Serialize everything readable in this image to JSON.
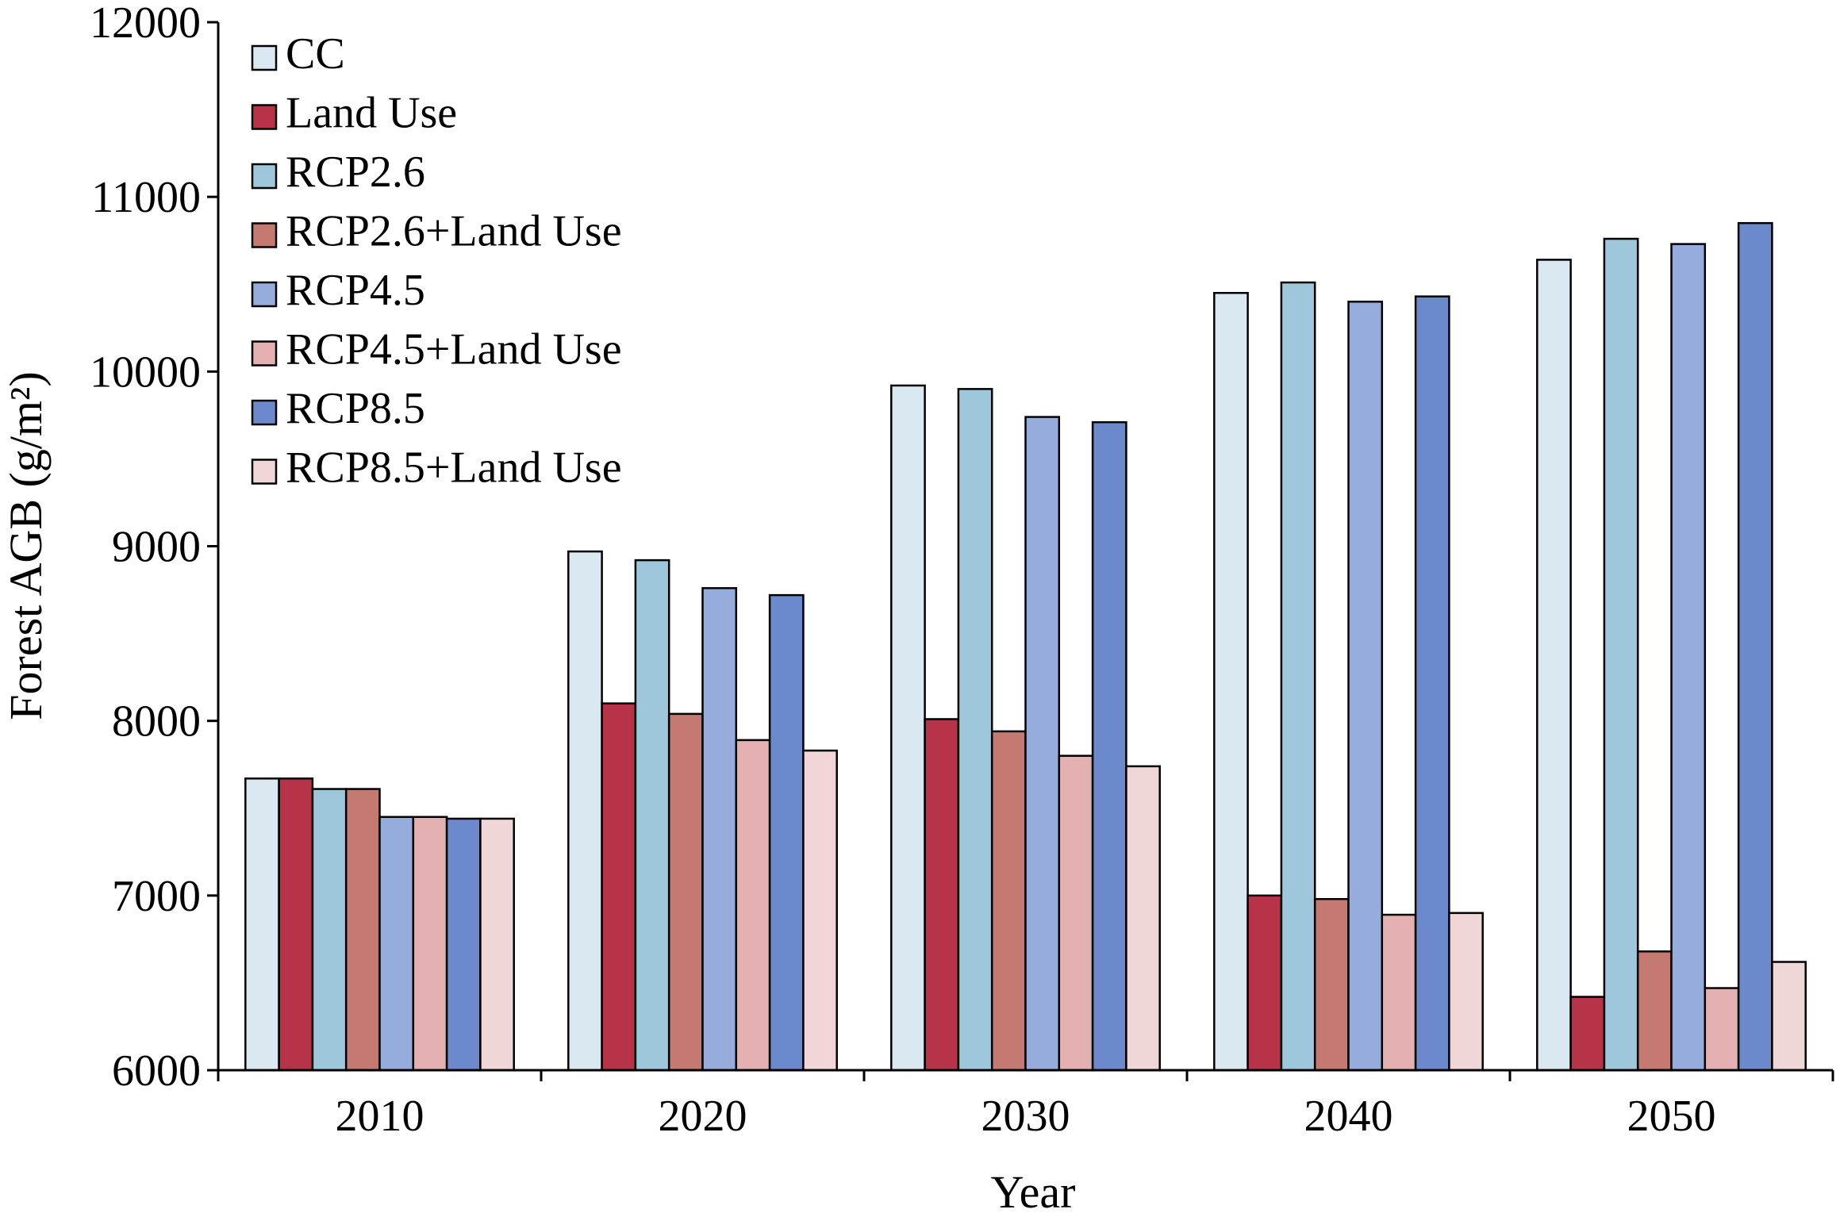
{
  "chart_data": {
    "type": "bar",
    "xlabel": "Year",
    "ylabel": "Forest AGB (g/m²)",
    "ylim": [
      6000,
      12000
    ],
    "yticks": [
      "6000",
      "7000",
      "8000",
      "9000",
      "10000",
      "11000",
      "12000"
    ],
    "categories": [
      "2010",
      "2020",
      "2030",
      "2040",
      "2050"
    ],
    "grid": false,
    "legend_position": "top-left",
    "series": [
      {
        "name": "CC",
        "color": "#dae9f1",
        "values": [
          7670,
          8970,
          9920,
          10450,
          10640
        ]
      },
      {
        "name": "Land Use",
        "color": "#b73448",
        "values": [
          7670,
          8100,
          8010,
          7000,
          6420
        ]
      },
      {
        "name": "RCP2.6",
        "color": "#9fc7db",
        "values": [
          7610,
          8920,
          9900,
          10510,
          10760
        ]
      },
      {
        "name": "RCP2.6+Land Use",
        "color": "#c47a71",
        "values": [
          7610,
          8040,
          7940,
          6980,
          6680
        ]
      },
      {
        "name": "RCP4.5",
        "color": "#96acdd",
        "values": [
          7450,
          8760,
          9740,
          10400,
          10730
        ]
      },
      {
        "name": "RCP4.5+Land Use",
        "color": "#e4b0b1",
        "values": [
          7450,
          7890,
          7800,
          6890,
          6470
        ]
      },
      {
        "name": "RCP8.5",
        "color": "#6c89cc",
        "values": [
          7440,
          8720,
          9710,
          10430,
          10850
        ]
      },
      {
        "name": "RCP8.5+Land Use",
        "color": "#f0d6d7",
        "values": [
          7440,
          7830,
          7740,
          6900,
          6620
        ]
      }
    ]
  }
}
